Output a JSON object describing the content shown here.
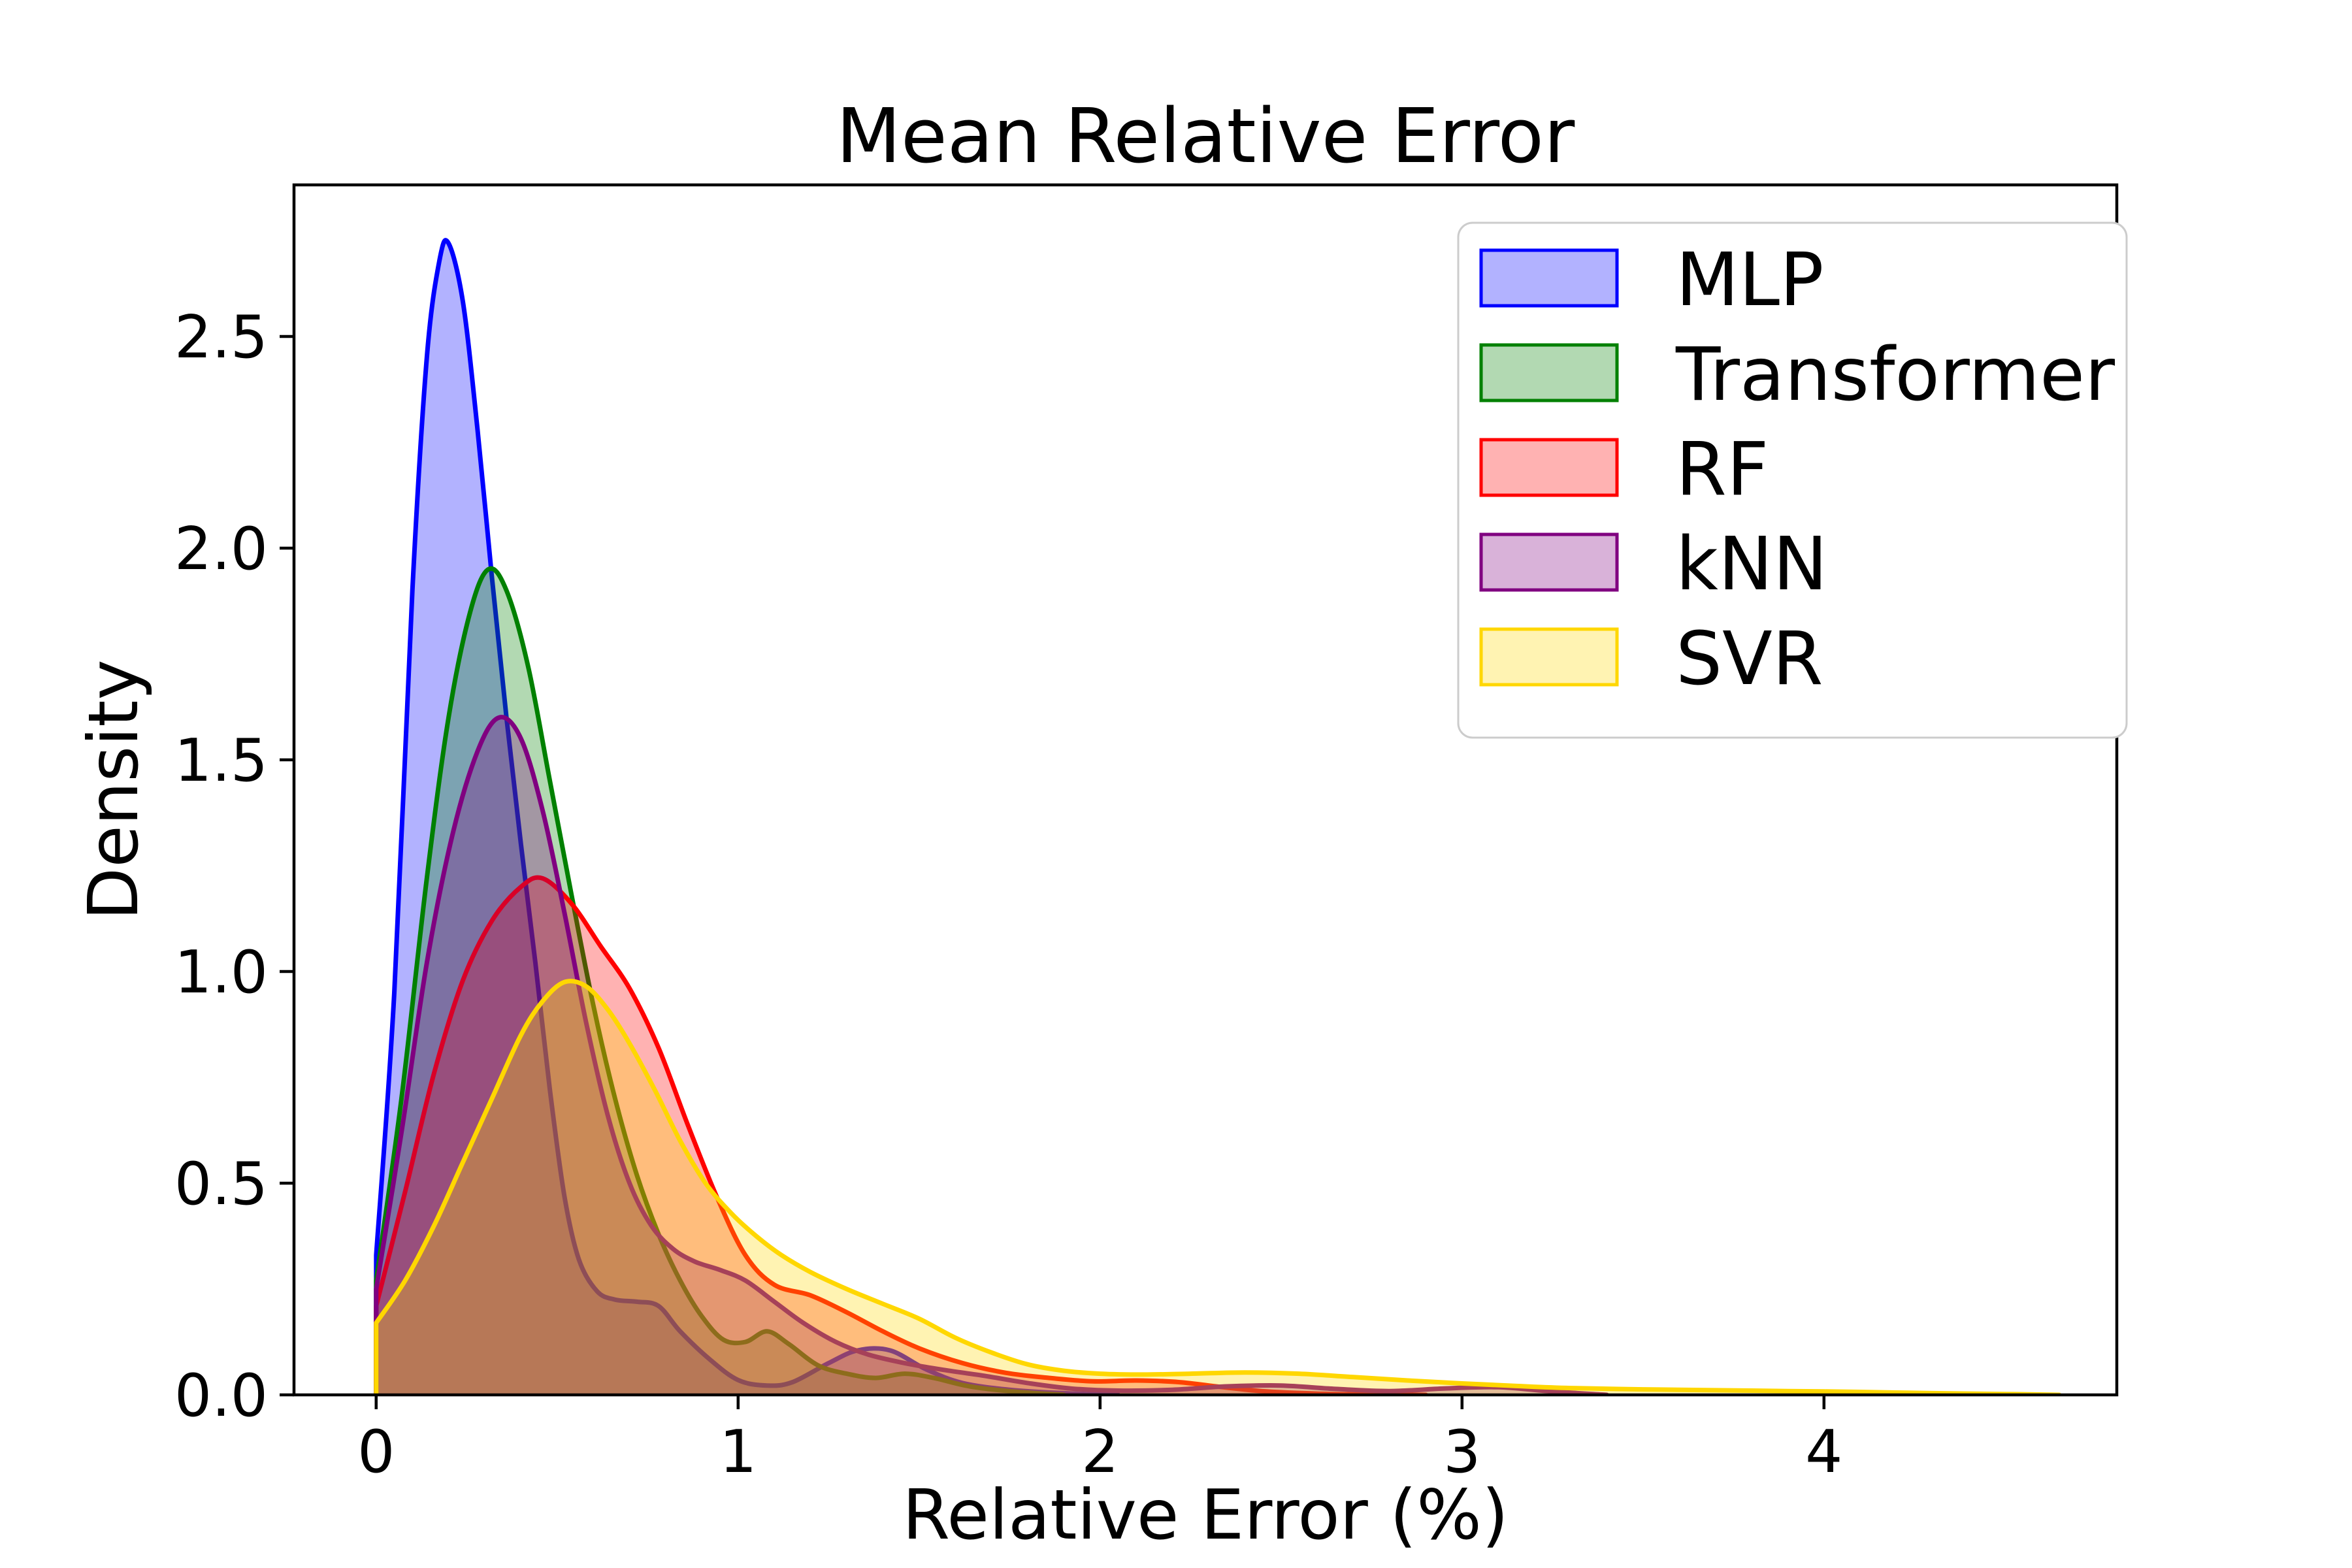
{
  "chart_data": {
    "type": "area",
    "subtype": "kde-density",
    "title": "Mean Relative Error",
    "xlabel": "Relative Error (%)",
    "ylabel": "Density",
    "xlim": [
      -0.227,
      4.809
    ],
    "ylim": [
      0,
      2.858
    ],
    "x_ticks": [
      0,
      1,
      2,
      3,
      4
    ],
    "x_tick_labels": [
      "0",
      "1",
      "2",
      "3",
      "4"
    ],
    "y_ticks": [
      0.0,
      0.5,
      1.0,
      1.5,
      2.0,
      2.5
    ],
    "y_tick_labels": [
      "0.0",
      "0.5",
      "1.0",
      "1.5",
      "2.0",
      "2.5"
    ],
    "grid": false,
    "legend_position": "upper right",
    "fill_opacity": 0.3,
    "frame_color": "#000000",
    "legend_border_color": "#cccccc",
    "series": [
      {
        "name": "MLP",
        "color": "#0000ff",
        "points": [
          [
            0,
            0.33
          ],
          [
            0.05,
            0.95
          ],
          [
            0.1,
            1.9
          ],
          [
            0.14,
            2.45
          ],
          [
            0.175,
            2.68
          ],
          [
            0.2,
            2.72
          ],
          [
            0.24,
            2.58
          ],
          [
            0.28,
            2.28
          ],
          [
            0.32,
            1.93
          ],
          [
            0.36,
            1.6
          ],
          [
            0.4,
            1.3
          ],
          [
            0.44,
            1.02
          ],
          [
            0.48,
            0.72
          ],
          [
            0.52,
            0.47
          ],
          [
            0.56,
            0.32
          ],
          [
            0.61,
            0.245
          ],
          [
            0.66,
            0.225
          ],
          [
            0.72,
            0.22
          ],
          [
            0.78,
            0.21
          ],
          [
            0.84,
            0.15
          ],
          [
            0.92,
            0.085
          ],
          [
            1.0,
            0.035
          ],
          [
            1.08,
            0.022
          ],
          [
            1.15,
            0.03
          ],
          [
            1.25,
            0.075
          ],
          [
            1.33,
            0.105
          ],
          [
            1.42,
            0.105
          ],
          [
            1.52,
            0.06
          ],
          [
            1.62,
            0.028
          ],
          [
            1.75,
            0.012
          ],
          [
            1.9,
            0.004
          ],
          [
            2.05,
            0
          ]
        ]
      },
      {
        "name": "Transformer",
        "color": "#008000",
        "points": [
          [
            0,
            0.27
          ],
          [
            0.07,
            0.7
          ],
          [
            0.14,
            1.22
          ],
          [
            0.2,
            1.6
          ],
          [
            0.26,
            1.85
          ],
          [
            0.31,
            1.95
          ],
          [
            0.36,
            1.9
          ],
          [
            0.42,
            1.72
          ],
          [
            0.48,
            1.45
          ],
          [
            0.54,
            1.18
          ],
          [
            0.6,
            0.92
          ],
          [
            0.66,
            0.7
          ],
          [
            0.72,
            0.52
          ],
          [
            0.78,
            0.38
          ],
          [
            0.84,
            0.27
          ],
          [
            0.9,
            0.185
          ],
          [
            0.96,
            0.13
          ],
          [
            1.02,
            0.125
          ],
          [
            1.08,
            0.15
          ],
          [
            1.14,
            0.12
          ],
          [
            1.22,
            0.07
          ],
          [
            1.3,
            0.05
          ],
          [
            1.38,
            0.04
          ],
          [
            1.46,
            0.05
          ],
          [
            1.54,
            0.04
          ],
          [
            1.64,
            0.02
          ],
          [
            1.76,
            0.008
          ],
          [
            1.9,
            0
          ]
        ]
      },
      {
        "name": "RF",
        "color": "#ff0000",
        "points": [
          [
            0,
            0.21
          ],
          [
            0.08,
            0.48
          ],
          [
            0.16,
            0.76
          ],
          [
            0.24,
            0.98
          ],
          [
            0.32,
            1.12
          ],
          [
            0.4,
            1.2
          ],
          [
            0.46,
            1.22
          ],
          [
            0.54,
            1.16
          ],
          [
            0.62,
            1.06
          ],
          [
            0.7,
            0.96
          ],
          [
            0.78,
            0.82
          ],
          [
            0.86,
            0.64
          ],
          [
            0.94,
            0.47
          ],
          [
            1.02,
            0.33
          ],
          [
            1.1,
            0.26
          ],
          [
            1.2,
            0.235
          ],
          [
            1.3,
            0.195
          ],
          [
            1.4,
            0.15
          ],
          [
            1.5,
            0.11
          ],
          [
            1.62,
            0.075
          ],
          [
            1.74,
            0.052
          ],
          [
            1.86,
            0.04
          ],
          [
            1.98,
            0.032
          ],
          [
            2.1,
            0.034
          ],
          [
            2.22,
            0.03
          ],
          [
            2.34,
            0.018
          ],
          [
            2.46,
            0.008
          ],
          [
            2.6,
            0.003
          ],
          [
            2.75,
            0.001
          ],
          [
            2.9,
            0
          ]
        ]
      },
      {
        "name": "kNN",
        "color": "#800080",
        "points": [
          [
            0,
            0.25
          ],
          [
            0.07,
            0.62
          ],
          [
            0.14,
            1.02
          ],
          [
            0.21,
            1.32
          ],
          [
            0.28,
            1.52
          ],
          [
            0.34,
            1.6
          ],
          [
            0.4,
            1.55
          ],
          [
            0.46,
            1.38
          ],
          [
            0.52,
            1.14
          ],
          [
            0.58,
            0.88
          ],
          [
            0.64,
            0.66
          ],
          [
            0.7,
            0.5
          ],
          [
            0.76,
            0.4
          ],
          [
            0.82,
            0.345
          ],
          [
            0.88,
            0.315
          ],
          [
            0.95,
            0.295
          ],
          [
            1.02,
            0.27
          ],
          [
            1.1,
            0.22
          ],
          [
            1.18,
            0.17
          ],
          [
            1.27,
            0.125
          ],
          [
            1.36,
            0.095
          ],
          [
            1.46,
            0.075
          ],
          [
            1.56,
            0.06
          ],
          [
            1.68,
            0.045
          ],
          [
            1.8,
            0.028
          ],
          [
            1.92,
            0.015
          ],
          [
            2.05,
            0.01
          ],
          [
            2.2,
            0.012
          ],
          [
            2.35,
            0.02
          ],
          [
            2.5,
            0.022
          ],
          [
            2.65,
            0.014
          ],
          [
            2.8,
            0.009
          ],
          [
            2.95,
            0.015
          ],
          [
            3.1,
            0.018
          ],
          [
            3.25,
            0.008
          ],
          [
            3.4,
            0
          ]
        ]
      },
      {
        "name": "SVR",
        "color": "#ffd700",
        "points": [
          [
            0,
            0.17
          ],
          [
            0.08,
            0.27
          ],
          [
            0.16,
            0.4
          ],
          [
            0.24,
            0.55
          ],
          [
            0.32,
            0.7
          ],
          [
            0.4,
            0.85
          ],
          [
            0.46,
            0.93
          ],
          [
            0.52,
            0.975
          ],
          [
            0.58,
            0.965
          ],
          [
            0.64,
            0.91
          ],
          [
            0.7,
            0.83
          ],
          [
            0.77,
            0.72
          ],
          [
            0.84,
            0.6
          ],
          [
            0.91,
            0.5
          ],
          [
            0.98,
            0.43
          ],
          [
            1.05,
            0.375
          ],
          [
            1.12,
            0.33
          ],
          [
            1.2,
            0.29
          ],
          [
            1.3,
            0.25
          ],
          [
            1.4,
            0.215
          ],
          [
            1.5,
            0.18
          ],
          [
            1.6,
            0.135
          ],
          [
            1.7,
            0.1
          ],
          [
            1.8,
            0.072
          ],
          [
            1.9,
            0.057
          ],
          [
            2.0,
            0.05
          ],
          [
            2.12,
            0.048
          ],
          [
            2.25,
            0.05
          ],
          [
            2.4,
            0.053
          ],
          [
            2.55,
            0.05
          ],
          [
            2.7,
            0.042
          ],
          [
            2.85,
            0.034
          ],
          [
            3.0,
            0.027
          ],
          [
            3.15,
            0.021
          ],
          [
            3.3,
            0.016
          ],
          [
            3.5,
            0.013
          ],
          [
            3.7,
            0.011
          ],
          [
            3.9,
            0.009
          ],
          [
            4.1,
            0.007
          ],
          [
            4.3,
            0.004
          ],
          [
            4.5,
            0.002
          ],
          [
            4.65,
            0
          ]
        ]
      }
    ]
  }
}
